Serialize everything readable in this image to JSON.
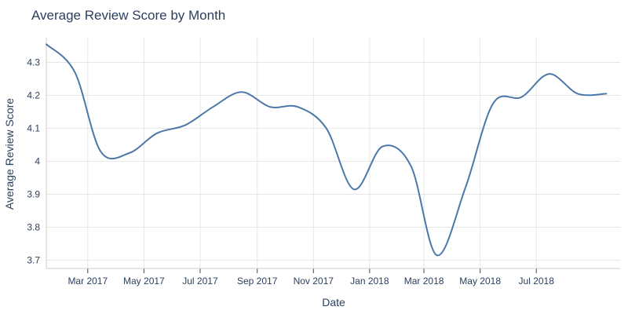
{
  "chart_data": {
    "type": "line",
    "title": "Average Review Score by Month",
    "xlabel": "Date",
    "ylabel": "Average Review Score",
    "grid": true,
    "legend": "none",
    "xlim": [
      "2017-01-15",
      "2018-09-30"
    ],
    "ylim": [
      3.675,
      4.375
    ],
    "x_ticks": [
      "2017-03-01",
      "2017-05-01",
      "2017-07-01",
      "2017-09-01",
      "2017-11-01",
      "2018-01-01",
      "2018-03-01",
      "2018-05-01",
      "2018-07-01"
    ],
    "x_tick_labels": [
      "Mar 2017",
      "May 2017",
      "Jul 2017",
      "Sep 2017",
      "Nov 2017",
      "Jan 2018",
      "Mar 2018",
      "May 2018",
      "Jul 2018"
    ],
    "y_ticks": [
      3.7,
      3.8,
      3.9,
      4.0,
      4.1,
      4.2,
      4.3
    ],
    "y_tick_labels": [
      "3.7",
      "3.8",
      "3.9",
      "4",
      "4.1",
      "4.2",
      "4.3"
    ],
    "series": [
      {
        "color": "#4c78a8",
        "x": [
          "2017-01-15",
          "2017-02-15",
          "2017-03-15",
          "2017-04-15",
          "2017-05-15",
          "2017-06-15",
          "2017-07-15",
          "2017-08-15",
          "2017-09-15",
          "2017-10-15",
          "2017-11-15",
          "2017-12-15",
          "2018-01-15",
          "2018-02-15",
          "2018-03-15",
          "2018-04-15",
          "2018-05-15",
          "2018-06-15",
          "2018-07-15",
          "2018-08-15",
          "2018-09-15"
        ],
        "y": [
          4.355,
          4.27,
          4.03,
          4.025,
          4.085,
          4.11,
          4.165,
          4.21,
          4.165,
          4.165,
          4.1,
          3.915,
          4.045,
          3.985,
          3.715,
          3.92,
          4.175,
          4.195,
          4.265,
          4.205,
          4.205
        ]
      }
    ]
  }
}
